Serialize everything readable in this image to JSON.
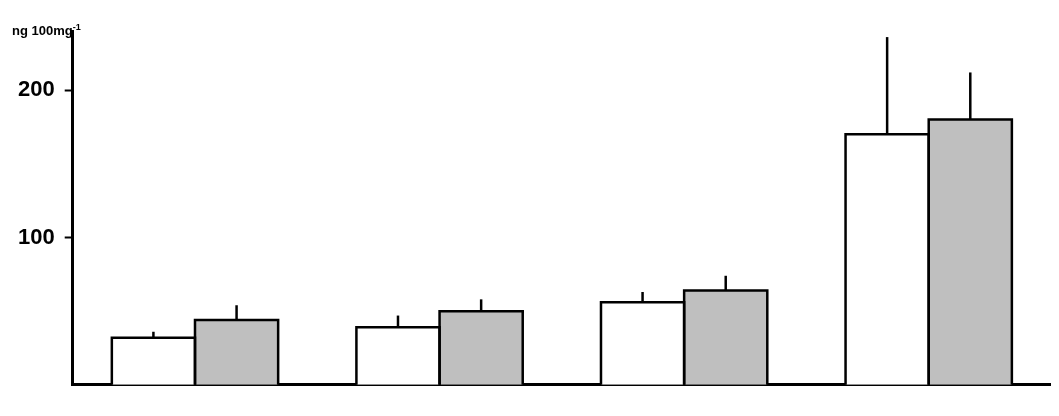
{
  "chart_data": {
    "type": "bar",
    "ylabel": "ng 100mg$^{-1}$",
    "categories": [
      null,
      null,
      null,
      null
    ],
    "series": [
      {
        "color": "#ffffff",
        "values": [
          32,
          39,
          56,
          170
        ],
        "errors": [
          [
            32,
            36
          ],
          [
            39,
            47
          ],
          [
            56,
            63
          ],
          [
            170,
            236
          ]
        ]
      },
      {
        "color": "#bfbfbf",
        "values": [
          44,
          50,
          64,
          180
        ],
        "errors": [
          [
            44,
            54
          ],
          [
            50,
            58
          ],
          [
            64,
            74
          ],
          [
            180,
            212
          ]
        ]
      }
    ],
    "ylim": [
      0,
      240
    ],
    "yticks": [
      100,
      200
    ],
    "grid": false,
    "legend": false
  }
}
